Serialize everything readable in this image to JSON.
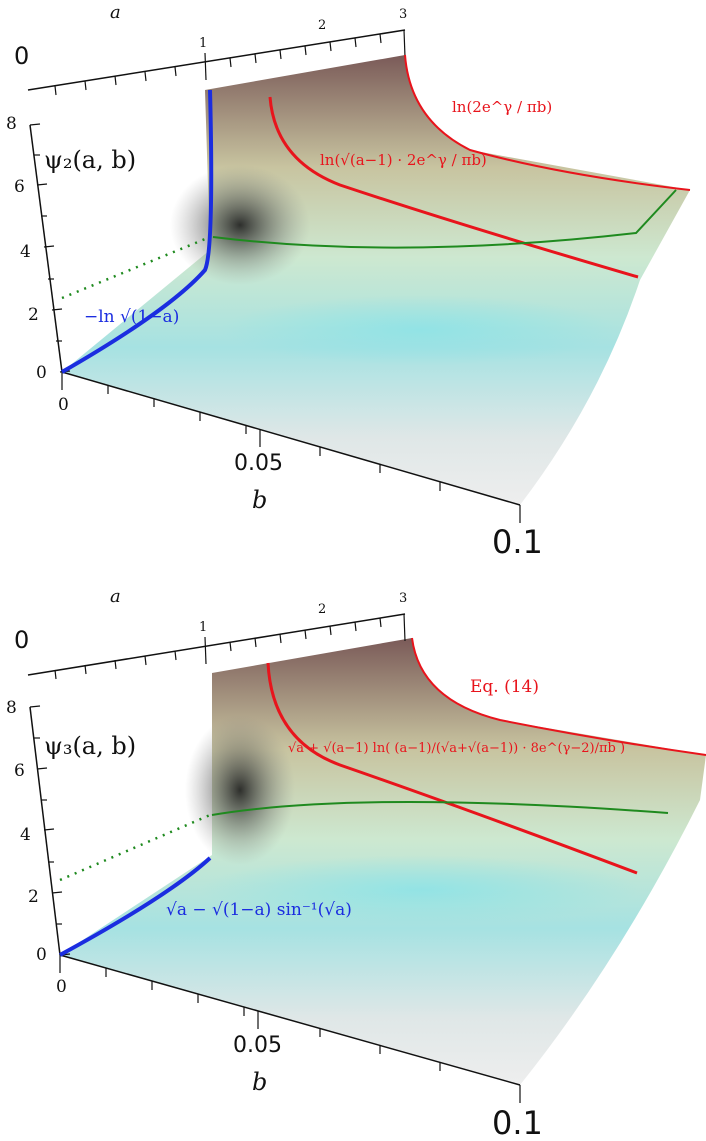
{
  "colors": {
    "red": "#e8141c",
    "blue": "#1b2de0",
    "green": "#1f8a1f",
    "axis": "#111111"
  },
  "panels": [
    {
      "a_axis_label": "a",
      "a_ticks": [
        "0",
        "1",
        "2",
        "3"
      ],
      "z_ticks": [
        "8",
        "6",
        "4",
        "2",
        "0"
      ],
      "b_ticks": [
        "0",
        "0.05",
        "0.1"
      ],
      "b_axis_label": "b",
      "z_label": "ψ₂(a, b)",
      "labels": {
        "red_top": "ln(2e^γ / πb)",
        "red_mid": "ln(√(a−1) · 2e^γ / πb)",
        "blue": "−ln √(1−a)"
      }
    },
    {
      "a_axis_label": "a",
      "a_ticks": [
        "0",
        "1",
        "2",
        "3"
      ],
      "z_ticks": [
        "8",
        "6",
        "4",
        "2",
        "0"
      ],
      "b_ticks": [
        "0",
        "0.05",
        "0.1"
      ],
      "b_axis_label": "b",
      "z_label": "ψ₃(a, b)",
      "labels": {
        "red_top": "Eq. (14)",
        "red_mid": "√a + √(a−1) ln( (a−1)/(√a+√(a−1)) · 8e^(γ−2)/πb )",
        "blue": "√a − √(1−a) sin⁻¹(√a)"
      }
    }
  ]
}
